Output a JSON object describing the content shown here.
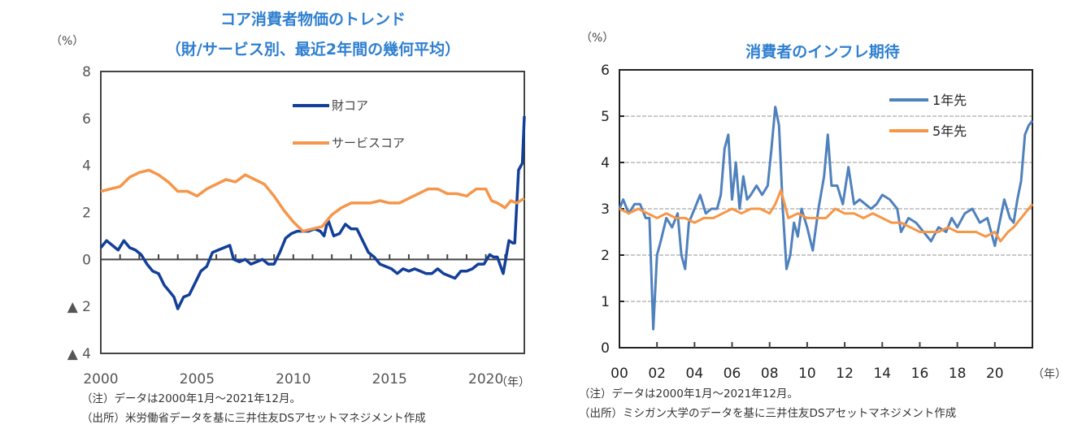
{
  "chart_data": [
    {
      "type": "line",
      "title": "コア消費者物価のトレンド",
      "subtitle": "（財/サービス別、最近2年間の幾何平均）",
      "ylabel": "（%）",
      "xlabel": "（年）",
      "ylim": [
        -4,
        8
      ],
      "yticks": [
        8,
        6,
        4,
        2,
        0,
        -2,
        -4
      ],
      "ytick_labels": [
        "8",
        "6",
        "4",
        "2",
        "0",
        "▲ 2",
        "▲ 4"
      ],
      "xlim": [
        2000,
        2022
      ],
      "xticks": [
        2000,
        2005,
        2010,
        2015,
        2020
      ],
      "xtick_labels": [
        "2000",
        "2005",
        "2010",
        "2015",
        "2020"
      ],
      "legend_position": "top-right",
      "series": [
        {
          "name": "財コア",
          "color": "#123f99",
          "x": [
            2000,
            2000.3,
            2000.6,
            2000.9,
            2001.2,
            2001.5,
            2001.8,
            2002.1,
            2002.4,
            2002.7,
            2003.0,
            2003.3,
            2003.6,
            2003.8,
            2004.0,
            2004.3,
            2004.6,
            2004.9,
            2005.2,
            2005.5,
            2005.8,
            2006.1,
            2006.4,
            2006.7,
            2006.9,
            2007.2,
            2007.5,
            2007.8,
            2008.1,
            2008.4,
            2008.7,
            2009.0,
            2009.3,
            2009.6,
            2009.9,
            2010.2,
            2010.5,
            2010.8,
            2011.1,
            2011.4,
            2011.6,
            2011.8,
            2012.1,
            2012.4,
            2012.7,
            2013.0,
            2013.3,
            2013.6,
            2013.9,
            2014.2,
            2014.5,
            2014.8,
            2015.1,
            2015.4,
            2015.7,
            2016.0,
            2016.3,
            2016.6,
            2016.9,
            2017.2,
            2017.5,
            2017.8,
            2018.1,
            2018.4,
            2018.7,
            2019.0,
            2019.3,
            2019.6,
            2019.9,
            2020.2,
            2020.4,
            2020.6,
            2020.9,
            2021.2,
            2021.4,
            2021.5,
            2021.7,
            2021.9,
            2022.0
          ],
          "values": [
            0.5,
            0.8,
            0.6,
            0.4,
            0.8,
            0.5,
            0.4,
            0.2,
            -0.2,
            -0.5,
            -0.6,
            -1.1,
            -1.4,
            -1.6,
            -2.1,
            -1.6,
            -1.5,
            -1.0,
            -0.5,
            -0.3,
            0.3,
            0.4,
            0.5,
            0.6,
            0.0,
            -0.1,
            0.0,
            -0.2,
            -0.1,
            0.0,
            -0.2,
            -0.2,
            0.3,
            0.9,
            1.1,
            1.2,
            1.2,
            1.2,
            1.3,
            1.2,
            1.0,
            1.7,
            1.0,
            1.1,
            1.5,
            1.3,
            1.3,
            0.8,
            0.3,
            0.1,
            -0.2,
            -0.3,
            -0.4,
            -0.6,
            -0.4,
            -0.5,
            -0.4,
            -0.5,
            -0.6,
            -0.6,
            -0.4,
            -0.6,
            -0.7,
            -0.8,
            -0.5,
            -0.5,
            -0.4,
            -0.2,
            -0.2,
            0.2,
            0.1,
            0.1,
            -0.6,
            0.8,
            0.7,
            0.7,
            3.8,
            4.1,
            6.1
          ]
        },
        {
          "name": "サービスコア",
          "color": "#f5964a",
          "x": [
            2000,
            2000.5,
            2001.0,
            2001.5,
            2002.0,
            2002.5,
            2003.0,
            2003.5,
            2004.0,
            2004.5,
            2005.0,
            2005.5,
            2006.0,
            2006.5,
            2007.0,
            2007.5,
            2008.0,
            2008.5,
            2009.0,
            2009.5,
            2010.0,
            2010.5,
            2011.0,
            2011.5,
            2012.0,
            2012.5,
            2013.0,
            2013.5,
            2014.0,
            2014.5,
            2015.0,
            2015.5,
            2016.0,
            2016.5,
            2017.0,
            2017.5,
            2018.0,
            2018.5,
            2019.0,
            2019.5,
            2020.0,
            2020.3,
            2020.6,
            2021.0,
            2021.3,
            2021.6,
            2022.0
          ],
          "values": [
            2.9,
            3.0,
            3.1,
            3.5,
            3.7,
            3.8,
            3.6,
            3.3,
            2.9,
            2.9,
            2.7,
            3.0,
            3.2,
            3.4,
            3.3,
            3.6,
            3.4,
            3.2,
            2.7,
            2.1,
            1.6,
            1.2,
            1.3,
            1.4,
            1.9,
            2.2,
            2.4,
            2.4,
            2.4,
            2.5,
            2.4,
            2.4,
            2.6,
            2.8,
            3.0,
            3.0,
            2.8,
            2.8,
            2.7,
            3.0,
            3.0,
            2.5,
            2.4,
            2.2,
            2.5,
            2.4,
            2.6
          ]
        }
      ]
    },
    {
      "type": "line",
      "title": "消費者のインフレ期待",
      "ylabel": "（%）",
      "xlabel": "（年）",
      "ylim": [
        0,
        6
      ],
      "yticks": [
        0,
        1,
        2,
        3,
        4,
        5,
        6
      ],
      "ytick_labels": [
        "0",
        "1",
        "2",
        "3",
        "4",
        "5",
        "6"
      ],
      "xlim": [
        2000,
        2022
      ],
      "xticks": [
        2000,
        2002,
        2004,
        2006,
        2008,
        2010,
        2012,
        2014,
        2016,
        2018,
        2020
      ],
      "xtick_labels": [
        "00",
        "02",
        "04",
        "06",
        "08",
        "10",
        "12",
        "14",
        "16",
        "18",
        "20"
      ],
      "grid": true,
      "legend_position": "top-right",
      "series": [
        {
          "name": "1年先",
          "color": "#4f81bd",
          "x": [
            2000,
            2000.2,
            2000.5,
            2000.8,
            2001.1,
            2001.4,
            2001.6,
            2001.8,
            2002.0,
            2002.2,
            2002.5,
            2002.8,
            2003.1,
            2003.3,
            2003.5,
            2003.7,
            2004.0,
            2004.3,
            2004.6,
            2004.9,
            2005.2,
            2005.4,
            2005.6,
            2005.8,
            2006.0,
            2006.2,
            2006.4,
            2006.6,
            2006.8,
            2007.0,
            2007.3,
            2007.6,
            2007.9,
            2008.1,
            2008.3,
            2008.5,
            2008.7,
            2008.9,
            2009.1,
            2009.3,
            2009.5,
            2009.7,
            2010.0,
            2010.3,
            2010.6,
            2010.9,
            2011.1,
            2011.3,
            2011.6,
            2011.9,
            2012.2,
            2012.5,
            2012.8,
            2013.1,
            2013.4,
            2013.7,
            2014.0,
            2014.4,
            2014.8,
            2015.0,
            2015.4,
            2015.8,
            2016.2,
            2016.6,
            2017.0,
            2017.4,
            2017.7,
            2018.0,
            2018.4,
            2018.8,
            2019.2,
            2019.6,
            2020.0,
            2020.2,
            2020.5,
            2020.8,
            2021.0,
            2021.2,
            2021.4,
            2021.6,
            2021.8,
            2022.0
          ],
          "values": [
            3.0,
            3.2,
            2.9,
            3.1,
            3.1,
            2.8,
            2.8,
            0.4,
            2.0,
            2.3,
            2.8,
            2.6,
            2.9,
            2.0,
            1.7,
            2.7,
            3.0,
            3.3,
            2.9,
            3.0,
            3.0,
            3.3,
            4.3,
            4.6,
            3.2,
            4.0,
            3.0,
            3.7,
            3.2,
            3.3,
            3.5,
            3.3,
            3.5,
            4.3,
            5.2,
            4.8,
            3.0,
            1.7,
            2.0,
            2.7,
            2.4,
            3.0,
            2.6,
            2.1,
            3.0,
            3.7,
            4.6,
            3.5,
            3.5,
            3.1,
            3.9,
            3.1,
            3.2,
            3.1,
            3.0,
            3.1,
            3.3,
            3.2,
            3.0,
            2.5,
            2.8,
            2.7,
            2.5,
            2.3,
            2.6,
            2.5,
            2.8,
            2.6,
            2.9,
            3.0,
            2.7,
            2.8,
            2.2,
            2.6,
            3.2,
            2.8,
            2.7,
            3.2,
            3.6,
            4.6,
            4.8,
            4.9
          ]
        },
        {
          "name": "5年先",
          "color": "#f79646",
          "x": [
            2000,
            2000.5,
            2001.0,
            2001.5,
            2002.0,
            2002.5,
            2003.0,
            2003.5,
            2004.0,
            2004.5,
            2005.0,
            2005.5,
            2006.0,
            2006.5,
            2007.0,
            2007.5,
            2008.0,
            2008.3,
            2008.6,
            2009.0,
            2009.5,
            2010.0,
            2010.5,
            2011.0,
            2011.5,
            2012.0,
            2012.5,
            2013.0,
            2013.5,
            2014.0,
            2014.5,
            2015.0,
            2015.5,
            2016.0,
            2016.5,
            2017.0,
            2017.5,
            2018.0,
            2018.5,
            2019.0,
            2019.5,
            2020.0,
            2020.3,
            2020.7,
            2021.0,
            2021.4,
            2021.8,
            2022.0
          ],
          "values": [
            3.0,
            2.9,
            3.0,
            2.9,
            2.8,
            2.9,
            2.8,
            2.8,
            2.7,
            2.8,
            2.8,
            2.9,
            3.0,
            2.9,
            3.0,
            3.0,
            2.9,
            3.1,
            3.4,
            2.8,
            2.9,
            2.8,
            2.8,
            2.8,
            3.0,
            2.9,
            2.9,
            2.8,
            2.9,
            2.8,
            2.7,
            2.7,
            2.6,
            2.5,
            2.5,
            2.5,
            2.6,
            2.5,
            2.5,
            2.5,
            2.4,
            2.5,
            2.3,
            2.5,
            2.6,
            2.8,
            3.0,
            3.1
          ]
        }
      ]
    }
  ],
  "left_notes": {
    "note1": "（注）データは2000年1月～2021年12月。",
    "note2": "（出所）米労働省データを基に三井住友DSアセットマネジメント作成"
  },
  "right_notes": {
    "note1": "（注）データは2000年1月～2021年12月。",
    "note2": "（出所）ミシガン大学のデータを基に三井住友DSアセットマネジメント作成"
  }
}
